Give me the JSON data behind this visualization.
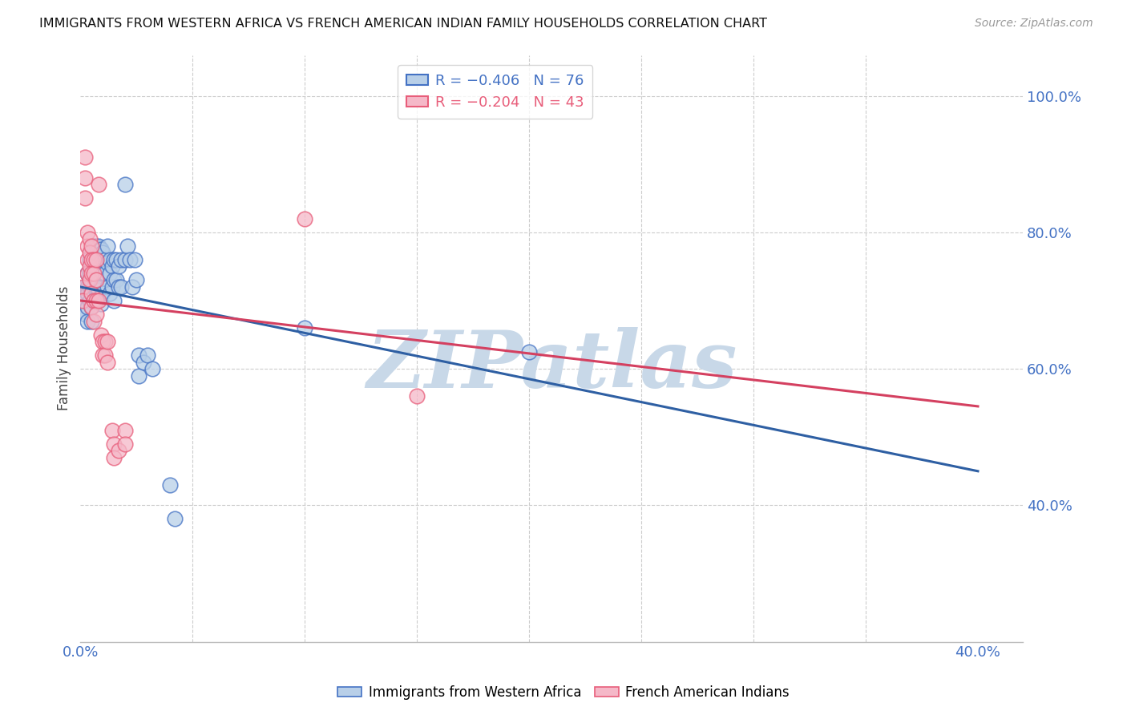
{
  "title": "IMMIGRANTS FROM WESTERN AFRICA VS FRENCH AMERICAN INDIAN FAMILY HOUSEHOLDS CORRELATION CHART",
  "source": "Source: ZipAtlas.com",
  "ylabel": "Family Households",
  "ytick_labels": [
    "40.0%",
    "60.0%",
    "80.0%",
    "100.0%"
  ],
  "ytick_values": [
    0.4,
    0.6,
    0.8,
    1.0
  ],
  "blue_scatter": [
    [
      0.001,
      0.685
    ],
    [
      0.001,
      0.7
    ],
    [
      0.002,
      0.72
    ],
    [
      0.002,
      0.7
    ],
    [
      0.002,
      0.68
    ],
    [
      0.003,
      0.74
    ],
    [
      0.003,
      0.72
    ],
    [
      0.003,
      0.71
    ],
    [
      0.003,
      0.69
    ],
    [
      0.003,
      0.67
    ],
    [
      0.004,
      0.76
    ],
    [
      0.004,
      0.74
    ],
    [
      0.004,
      0.72
    ],
    [
      0.004,
      0.7
    ],
    [
      0.005,
      0.77
    ],
    [
      0.005,
      0.75
    ],
    [
      0.005,
      0.73
    ],
    [
      0.005,
      0.71
    ],
    [
      0.005,
      0.69
    ],
    [
      0.005,
      0.67
    ],
    [
      0.006,
      0.78
    ],
    [
      0.006,
      0.76
    ],
    [
      0.006,
      0.74
    ],
    [
      0.006,
      0.72
    ],
    [
      0.006,
      0.7
    ],
    [
      0.007,
      0.78
    ],
    [
      0.007,
      0.76
    ],
    [
      0.007,
      0.74
    ],
    [
      0.007,
      0.72
    ],
    [
      0.007,
      0.7
    ],
    [
      0.008,
      0.78
    ],
    [
      0.008,
      0.76
    ],
    [
      0.008,
      0.74
    ],
    [
      0.008,
      0.715
    ],
    [
      0.009,
      0.775
    ],
    [
      0.009,
      0.75
    ],
    [
      0.009,
      0.72
    ],
    [
      0.009,
      0.695
    ],
    [
      0.01,
      0.77
    ],
    [
      0.01,
      0.74
    ],
    [
      0.01,
      0.71
    ],
    [
      0.011,
      0.76
    ],
    [
      0.011,
      0.74
    ],
    [
      0.012,
      0.78
    ],
    [
      0.012,
      0.755
    ],
    [
      0.012,
      0.72
    ],
    [
      0.013,
      0.76
    ],
    [
      0.013,
      0.74
    ],
    [
      0.013,
      0.71
    ],
    [
      0.014,
      0.75
    ],
    [
      0.014,
      0.72
    ],
    [
      0.015,
      0.76
    ],
    [
      0.015,
      0.73
    ],
    [
      0.015,
      0.7
    ],
    [
      0.016,
      0.76
    ],
    [
      0.016,
      0.73
    ],
    [
      0.017,
      0.75
    ],
    [
      0.017,
      0.72
    ],
    [
      0.018,
      0.76
    ],
    [
      0.018,
      0.72
    ],
    [
      0.02,
      0.87
    ],
    [
      0.02,
      0.76
    ],
    [
      0.021,
      0.78
    ],
    [
      0.022,
      0.76
    ],
    [
      0.023,
      0.72
    ],
    [
      0.024,
      0.76
    ],
    [
      0.025,
      0.73
    ],
    [
      0.026,
      0.62
    ],
    [
      0.026,
      0.59
    ],
    [
      0.028,
      0.61
    ],
    [
      0.03,
      0.62
    ],
    [
      0.032,
      0.6
    ],
    [
      0.04,
      0.43
    ],
    [
      0.042,
      0.38
    ],
    [
      0.1,
      0.66
    ],
    [
      0.2,
      0.625
    ]
  ],
  "pink_scatter": [
    [
      0.001,
      0.72
    ],
    [
      0.001,
      0.7
    ],
    [
      0.002,
      0.91
    ],
    [
      0.002,
      0.88
    ],
    [
      0.002,
      0.85
    ],
    [
      0.003,
      0.8
    ],
    [
      0.003,
      0.78
    ],
    [
      0.003,
      0.76
    ],
    [
      0.003,
      0.74
    ],
    [
      0.004,
      0.79
    ],
    [
      0.004,
      0.77
    ],
    [
      0.004,
      0.75
    ],
    [
      0.004,
      0.73
    ],
    [
      0.005,
      0.78
    ],
    [
      0.005,
      0.76
    ],
    [
      0.005,
      0.74
    ],
    [
      0.005,
      0.71
    ],
    [
      0.005,
      0.69
    ],
    [
      0.006,
      0.76
    ],
    [
      0.006,
      0.74
    ],
    [
      0.006,
      0.7
    ],
    [
      0.006,
      0.67
    ],
    [
      0.007,
      0.76
    ],
    [
      0.007,
      0.73
    ],
    [
      0.007,
      0.7
    ],
    [
      0.007,
      0.68
    ],
    [
      0.008,
      0.87
    ],
    [
      0.008,
      0.7
    ],
    [
      0.009,
      0.65
    ],
    [
      0.01,
      0.64
    ],
    [
      0.01,
      0.62
    ],
    [
      0.011,
      0.64
    ],
    [
      0.011,
      0.62
    ],
    [
      0.012,
      0.64
    ],
    [
      0.012,
      0.61
    ],
    [
      0.014,
      0.51
    ],
    [
      0.015,
      0.49
    ],
    [
      0.015,
      0.47
    ],
    [
      0.017,
      0.48
    ],
    [
      0.02,
      0.51
    ],
    [
      0.02,
      0.49
    ],
    [
      0.1,
      0.82
    ],
    [
      0.15,
      0.56
    ]
  ],
  "blue_line_x": [
    0.0,
    0.4
  ],
  "blue_line_y": [
    0.72,
    0.45
  ],
  "pink_line_x": [
    0.0,
    0.4
  ],
  "pink_line_y": [
    0.7,
    0.545
  ],
  "blue_color": "#4472c4",
  "pink_color": "#e85d7a",
  "blue_face": "#b8cfe8",
  "pink_face": "#f5b8c8",
  "blue_line_color": "#2e5fa3",
  "pink_line_color": "#d44060",
  "watermark": "ZIPatlas",
  "watermark_color": "#c8d8e8",
  "xlim": [
    0.0,
    0.42
  ],
  "ylim": [
    0.2,
    1.06
  ],
  "background": "#ffffff",
  "grid_color": "#cccccc",
  "title_fontsize": 11.5,
  "tick_color": "#4472c4",
  "ylabel_color": "#444444"
}
